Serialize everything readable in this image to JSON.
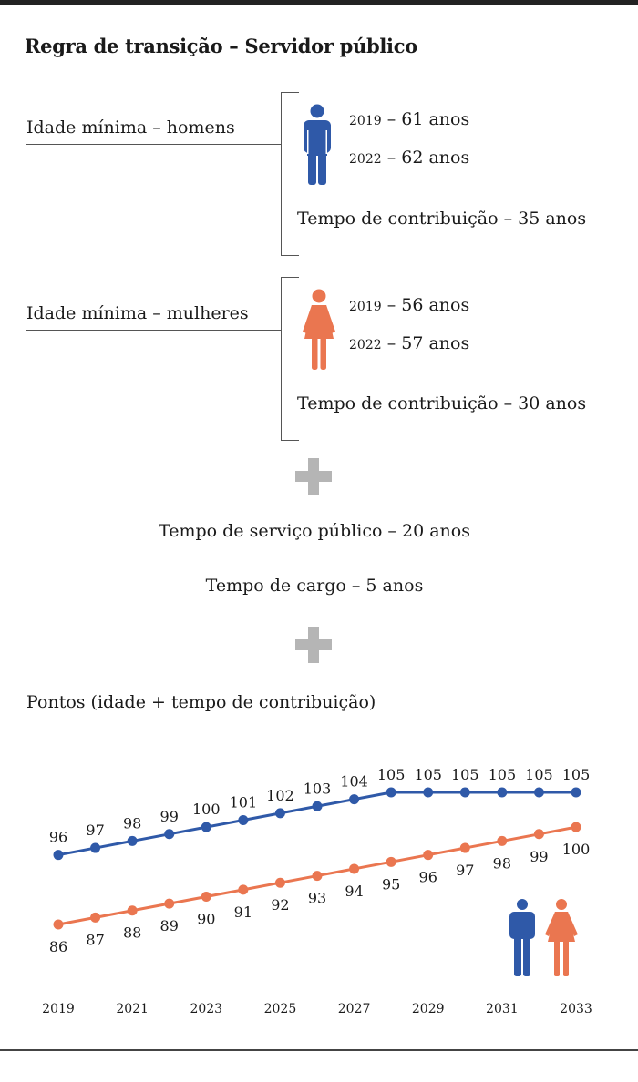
{
  "title": "Regra de transição – Servidor público",
  "men": {
    "label": "Idade mínima – homens",
    "rows": [
      {
        "year": "2019",
        "value": "– 61 anos"
      },
      {
        "year": "2022",
        "value": "– 62 anos"
      }
    ],
    "contribution": "Tempo de contribuição – 35 anos",
    "color": "#2f59a8",
    "icon": "man-icon"
  },
  "women": {
    "label": "Idade mínima – mulheres",
    "rows": [
      {
        "year": "2019",
        "value": "– 56 anos"
      },
      {
        "year": "2022",
        "value": "– 57 anos"
      }
    ],
    "contribution": "Tempo de contribuição – 30 anos",
    "color": "#ea7650",
    "icon": "woman-icon"
  },
  "public_service": "Tempo de serviço público – 20 anos",
  "position_time": "Tempo de cargo – 5 anos",
  "points_title": "Pontos (idade + tempo de contribuição)",
  "chart_data": {
    "type": "line",
    "x": [
      2019,
      2020,
      2021,
      2022,
      2023,
      2024,
      2025,
      2026,
      2027,
      2028,
      2029,
      2030,
      2031,
      2032,
      2033
    ],
    "x_tick_labels": [
      "2019",
      "2021",
      "2023",
      "2025",
      "2027",
      "2029",
      "2031",
      "2033"
    ],
    "series": [
      {
        "values": [
          96,
          97,
          98,
          99,
          100,
          101,
          102,
          103,
          104,
          105,
          105,
          105,
          105,
          105,
          105
        ],
        "color": "#2f59a8",
        "label_position": "above"
      },
      {
        "values": [
          86,
          87,
          88,
          89,
          90,
          91,
          92,
          93,
          94,
          95,
          96,
          97,
          98,
          99,
          100
        ],
        "color": "#ea7650",
        "label_position": "below"
      }
    ],
    "grid": false,
    "legend": "icons bottom-right"
  }
}
